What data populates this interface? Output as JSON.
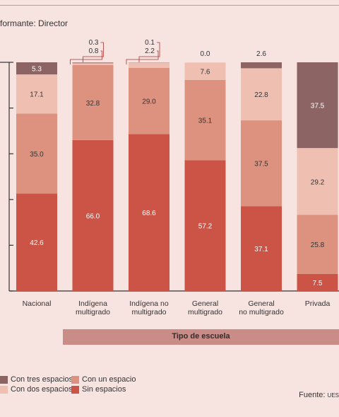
{
  "informant": "formante: Director",
  "axis_title": "Tipo de escuela",
  "source_label": "Fuente:",
  "source_value": "UES",
  "colors": {
    "tres": "#8c6464",
    "dos": "#efc0b2",
    "uno": "#dd927f",
    "sin": "#cc5446"
  },
  "chart_data": {
    "type": "bar",
    "stacked": true,
    "ylim": [
      0,
      100
    ],
    "categories": [
      "Nacional",
      "Indígena\nmultigrado",
      "Indígena no\nmultigrado",
      "General\nmultigrado",
      "General\nno multigrado",
      "Privada"
    ],
    "series": [
      {
        "name": "Sin espacios",
        "key": "sin",
        "values": [
          42.6,
          66.0,
          68.6,
          57.2,
          37.1,
          7.5
        ]
      },
      {
        "name": "Con un espacio",
        "key": "uno",
        "values": [
          35.0,
          32.8,
          29.0,
          35.1,
          37.5,
          25.8
        ]
      },
      {
        "name": "Con dos espacios",
        "key": "dos",
        "values": [
          17.1,
          0.8,
          2.2,
          7.6,
          22.8,
          29.2
        ]
      },
      {
        "name": "Con tres espacios",
        "key": "tres",
        "values": [
          5.3,
          0.3,
          0.1,
          0.0,
          2.6,
          37.5
        ]
      }
    ],
    "grid": false,
    "legend_position": "bottom-left"
  }
}
